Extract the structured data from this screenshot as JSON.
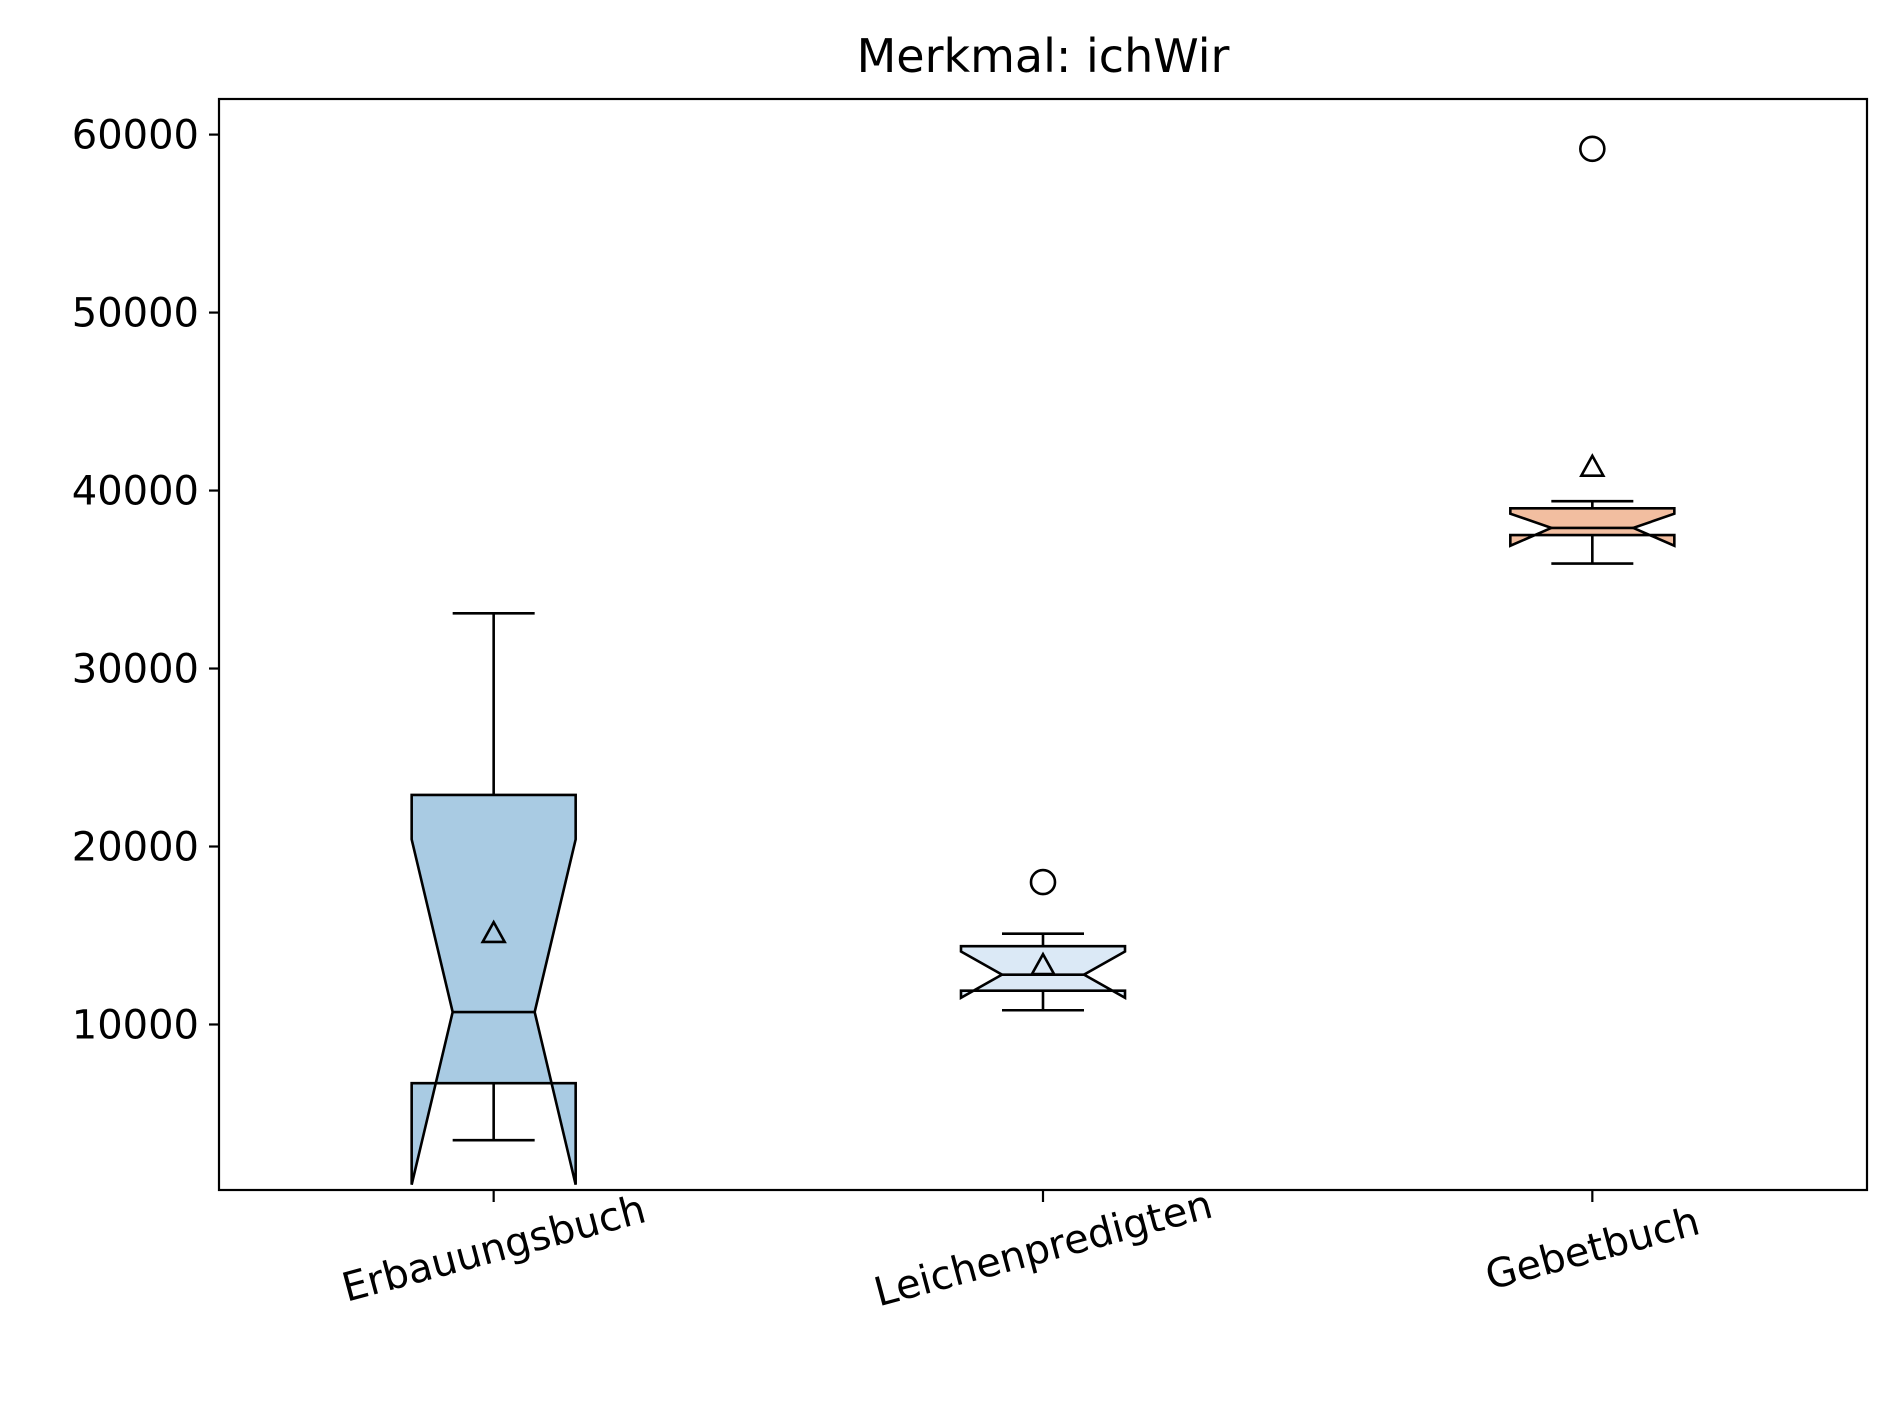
{
  "chart_data": {
    "type": "box",
    "title": "Merkmal: ichWir",
    "xlabel": "",
    "ylabel": "",
    "ylim": [
      700,
      62000
    ],
    "yticks": [
      10000,
      20000,
      30000,
      40000,
      50000,
      60000
    ],
    "notched": true,
    "categories": [
      "Erbauungsbuch",
      "Leichenpredigten",
      "Gebetbuch"
    ],
    "boxes": [
      {
        "name": "Erbauungsbuch",
        "color": "#a9cbe3",
        "whisker_low": 3500,
        "q1": 6700,
        "median": 10700,
        "q3": 22900,
        "whisker_high": 33100,
        "notch_low": 1000,
        "notch_high": 20400,
        "mean": 15100,
        "fliers": []
      },
      {
        "name": "Leichenpredigten",
        "color": "#dbe9f6",
        "whisker_low": 10800,
        "q1": 11900,
        "median": 12800,
        "q3": 14400,
        "whisker_high": 15100,
        "notch_low": 11500,
        "notch_high": 14100,
        "mean": 13300,
        "fliers": [
          18000
        ]
      },
      {
        "name": "Gebetbuch",
        "color": "#f2bea0",
        "whisker_low": 35900,
        "q1": 37500,
        "median": 37900,
        "q3": 39000,
        "whisker_high": 39400,
        "notch_low": 36900,
        "notch_high": 38700,
        "mean": 41300,
        "fliers": [
          59200
        ]
      }
    ]
  }
}
